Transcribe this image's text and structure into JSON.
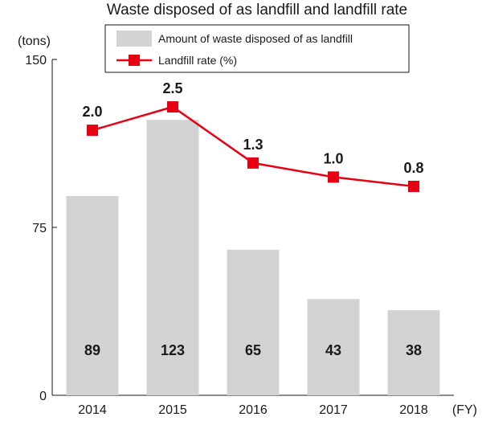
{
  "chart_data": {
    "type": "bar+line",
    "title": "Waste disposed of as landfill and landfill rate",
    "categories": [
      "2014",
      "2015",
      "2016",
      "2017",
      "2018"
    ],
    "x_unit": "(FY)",
    "y_unit": "(tons)",
    "ylim": [
      0,
      150
    ],
    "yticks": [
      "0",
      "75",
      "150"
    ],
    "grid": false,
    "legend_position": "top",
    "series": [
      {
        "name": "Amount of waste disposed of as landfill",
        "type": "bar",
        "values": [
          89,
          123,
          65,
          43,
          38
        ],
        "labels": [
          "89",
          "123",
          "65",
          "43",
          "38"
        ],
        "color": "#d3d3d3"
      },
      {
        "name": "Landfill rate (%)",
        "type": "line",
        "values": [
          2.0,
          2.5,
          1.3,
          1.0,
          0.8
        ],
        "labels": [
          "2.0",
          "2.5",
          "1.3",
          "1.0",
          "0.8"
        ],
        "color": "#e60012"
      }
    ]
  }
}
